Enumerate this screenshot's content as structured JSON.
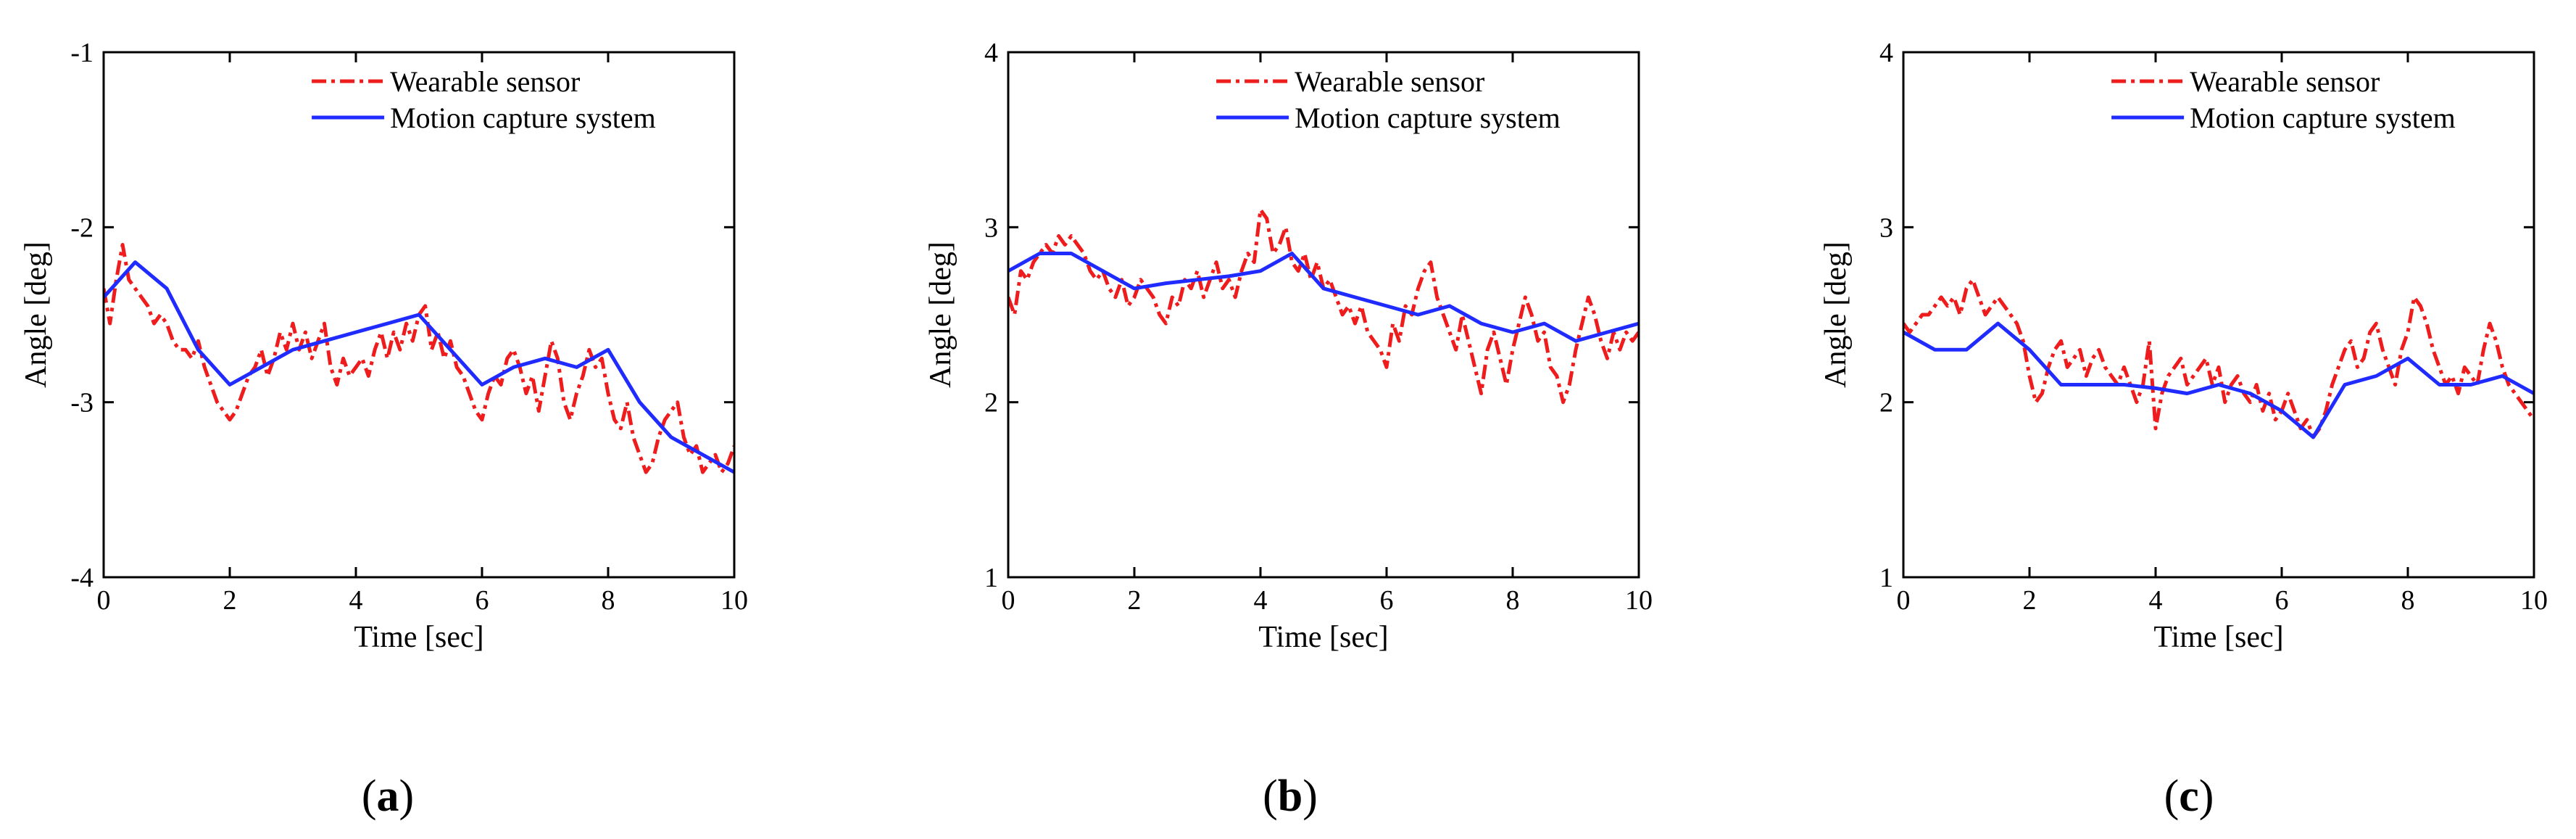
{
  "figure": {
    "panels": [
      "a",
      "b",
      "c"
    ]
  },
  "chart_data": [
    {
      "type": "line",
      "panel_label": "a",
      "xlabel": "Time [sec]",
      "ylabel": "Angle [deg]",
      "xlim": [
        0,
        10
      ],
      "ylim": [
        -4,
        -1
      ],
      "xticks": [
        0,
        2,
        4,
        6,
        8,
        10
      ],
      "yticks": [
        -4,
        -3,
        -2,
        -1
      ],
      "legend_position": "top-right",
      "series": [
        {
          "name": "Wearable sensor",
          "color": "#ee1c1c",
          "style": "dash-dot",
          "x": [
            0,
            0.1,
            0.2,
            0.3,
            0.4,
            0.5,
            0.6,
            0.7,
            0.8,
            0.9,
            1.0,
            1.1,
            1.2,
            1.3,
            1.4,
            1.5,
            1.6,
            1.7,
            1.8,
            1.9,
            2.0,
            2.1,
            2.2,
            2.3,
            2.4,
            2.5,
            2.6,
            2.7,
            2.8,
            2.9,
            3.0,
            3.1,
            3.2,
            3.3,
            3.4,
            3.5,
            3.6,
            3.7,
            3.8,
            3.9,
            4.0,
            4.1,
            4.2,
            4.3,
            4.4,
            4.5,
            4.6,
            4.7,
            4.8,
            4.9,
            5.0,
            5.1,
            5.2,
            5.3,
            5.4,
            5.5,
            5.6,
            5.7,
            5.8,
            5.9,
            6.0,
            6.1,
            6.2,
            6.3,
            6.4,
            6.5,
            6.6,
            6.7,
            6.8,
            6.9,
            7.0,
            7.1,
            7.2,
            7.3,
            7.4,
            7.5,
            7.6,
            7.7,
            7.8,
            7.9,
            8.0,
            8.1,
            8.2,
            8.3,
            8.4,
            8.5,
            8.6,
            8.7,
            8.8,
            8.9,
            9.0,
            9.1,
            9.2,
            9.3,
            9.4,
            9.5,
            9.6,
            9.7,
            9.8,
            9.9,
            10.0
          ],
          "y": [
            -2.35,
            -2.55,
            -2.3,
            -2.1,
            -2.3,
            -2.35,
            -2.4,
            -2.45,
            -2.55,
            -2.5,
            -2.55,
            -2.65,
            -2.7,
            -2.7,
            -2.75,
            -2.65,
            -2.8,
            -2.9,
            -3.0,
            -3.05,
            -3.1,
            -3.05,
            -2.95,
            -2.85,
            -2.8,
            -2.7,
            -2.85,
            -2.75,
            -2.6,
            -2.7,
            -2.55,
            -2.7,
            -2.6,
            -2.75,
            -2.65,
            -2.55,
            -2.8,
            -2.9,
            -2.75,
            -2.85,
            -2.8,
            -2.75,
            -2.85,
            -2.7,
            -2.6,
            -2.75,
            -2.6,
            -2.7,
            -2.55,
            -2.65,
            -2.5,
            -2.45,
            -2.7,
            -2.6,
            -2.75,
            -2.65,
            -2.8,
            -2.85,
            -2.95,
            -3.05,
            -3.1,
            -2.95,
            -2.85,
            -2.9,
            -2.75,
            -2.7,
            -2.8,
            -2.95,
            -2.85,
            -3.05,
            -2.85,
            -2.65,
            -2.75,
            -3.0,
            -3.1,
            -2.95,
            -2.85,
            -2.7,
            -2.8,
            -2.75,
            -2.95,
            -3.1,
            -3.15,
            -3.0,
            -3.2,
            -3.3,
            -3.4,
            -3.35,
            -3.2,
            -3.1,
            -3.05,
            -3.0,
            -3.2,
            -3.3,
            -3.25,
            -3.4,
            -3.35,
            -3.3,
            -3.4,
            -3.35,
            -3.25
          ]
        },
        {
          "name": "Motion capture system",
          "color": "#1f2bff",
          "style": "solid",
          "x": [
            0,
            0.5,
            1.0,
            1.5,
            2.0,
            2.5,
            3.0,
            3.5,
            4.0,
            4.5,
            5.0,
            5.5,
            6.0,
            6.5,
            7.0,
            7.5,
            8.0,
            8.5,
            9.0,
            9.5,
            10.0
          ],
          "y": [
            -2.4,
            -2.2,
            -2.35,
            -2.7,
            -2.9,
            -2.8,
            -2.7,
            -2.65,
            -2.6,
            -2.55,
            -2.5,
            -2.7,
            -2.9,
            -2.8,
            -2.75,
            -2.8,
            -2.7,
            -3.0,
            -3.2,
            -3.3,
            -3.4
          ]
        }
      ]
    },
    {
      "type": "line",
      "panel_label": "b",
      "xlabel": "Time [sec]",
      "ylabel": "Angle [deg]",
      "xlim": [
        0,
        10
      ],
      "ylim": [
        1,
        4
      ],
      "xticks": [
        0,
        2,
        4,
        6,
        8,
        10
      ],
      "yticks": [
        1,
        2,
        3,
        4
      ],
      "legend_position": "top-right",
      "series": [
        {
          "name": "Wearable sensor",
          "color": "#ee1c1c",
          "style": "dash-dot",
          "x": [
            0,
            0.1,
            0.2,
            0.3,
            0.4,
            0.5,
            0.6,
            0.7,
            0.8,
            0.9,
            1.0,
            1.1,
            1.2,
            1.3,
            1.4,
            1.5,
            1.6,
            1.7,
            1.8,
            1.9,
            2.0,
            2.1,
            2.2,
            2.3,
            2.4,
            2.5,
            2.6,
            2.7,
            2.8,
            2.9,
            3.0,
            3.1,
            3.2,
            3.3,
            3.4,
            3.5,
            3.6,
            3.7,
            3.8,
            3.9,
            4.0,
            4.1,
            4.2,
            4.3,
            4.4,
            4.5,
            4.6,
            4.7,
            4.8,
            4.9,
            5.0,
            5.1,
            5.2,
            5.3,
            5.4,
            5.5,
            5.6,
            5.7,
            5.8,
            5.9,
            6.0,
            6.1,
            6.2,
            6.3,
            6.4,
            6.5,
            6.6,
            6.7,
            6.8,
            6.9,
            7.0,
            7.1,
            7.2,
            7.3,
            7.4,
            7.5,
            7.6,
            7.7,
            7.8,
            7.9,
            8.0,
            8.1,
            8.2,
            8.3,
            8.4,
            8.5,
            8.6,
            8.7,
            8.8,
            8.9,
            9.0,
            9.1,
            9.2,
            9.3,
            9.4,
            9.5,
            9.6,
            9.7,
            9.8,
            9.9,
            10.0
          ],
          "y": [
            2.6,
            2.5,
            2.75,
            2.7,
            2.8,
            2.85,
            2.9,
            2.85,
            2.95,
            2.9,
            2.95,
            2.9,
            2.85,
            2.75,
            2.7,
            2.75,
            2.65,
            2.6,
            2.7,
            2.55,
            2.6,
            2.7,
            2.65,
            2.6,
            2.5,
            2.45,
            2.6,
            2.55,
            2.7,
            2.65,
            2.75,
            2.6,
            2.7,
            2.8,
            2.65,
            2.7,
            2.6,
            2.75,
            2.85,
            2.8,
            3.1,
            3.05,
            2.85,
            2.9,
            3.0,
            2.8,
            2.75,
            2.85,
            2.7,
            2.8,
            2.65,
            2.7,
            2.6,
            2.5,
            2.55,
            2.45,
            2.55,
            2.4,
            2.35,
            2.3,
            2.2,
            2.45,
            2.35,
            2.55,
            2.5,
            2.65,
            2.75,
            2.8,
            2.6,
            2.5,
            2.4,
            2.3,
            2.5,
            2.35,
            2.2,
            2.05,
            2.3,
            2.4,
            2.25,
            2.1,
            2.3,
            2.45,
            2.6,
            2.5,
            2.35,
            2.4,
            2.2,
            2.15,
            2.0,
            2.1,
            2.3,
            2.45,
            2.6,
            2.5,
            2.35,
            2.25,
            2.4,
            2.3,
            2.4,
            2.35,
            2.4
          ]
        },
        {
          "name": "Motion capture system",
          "color": "#1f2bff",
          "style": "solid",
          "x": [
            0,
            0.5,
            1.0,
            1.5,
            2.0,
            2.5,
            3.0,
            3.5,
            4.0,
            4.5,
            5.0,
            5.5,
            6.0,
            6.5,
            7.0,
            7.5,
            8.0,
            8.5,
            9.0,
            9.5,
            10.0
          ],
          "y": [
            2.75,
            2.85,
            2.85,
            2.75,
            2.65,
            2.68,
            2.7,
            2.72,
            2.75,
            2.85,
            2.65,
            2.6,
            2.55,
            2.5,
            2.55,
            2.45,
            2.4,
            2.45,
            2.35,
            2.4,
            2.45
          ]
        }
      ]
    },
    {
      "type": "line",
      "panel_label": "c",
      "xlabel": "Time [sec]",
      "ylabel": "Angle [deg]",
      "xlim": [
        0,
        10
      ],
      "ylim": [
        1,
        4
      ],
      "xticks": [
        0,
        2,
        4,
        6,
        8,
        10
      ],
      "yticks": [
        1,
        2,
        3,
        4
      ],
      "legend_position": "top-right",
      "series": [
        {
          "name": "Wearable sensor",
          "color": "#ee1c1c",
          "style": "dash-dot",
          "x": [
            0,
            0.1,
            0.2,
            0.3,
            0.4,
            0.5,
            0.6,
            0.7,
            0.8,
            0.9,
            1.0,
            1.1,
            1.2,
            1.3,
            1.4,
            1.5,
            1.6,
            1.7,
            1.8,
            1.9,
            2.0,
            2.1,
            2.2,
            2.3,
            2.4,
            2.5,
            2.6,
            2.7,
            2.8,
            2.9,
            3.0,
            3.1,
            3.2,
            3.3,
            3.4,
            3.5,
            3.6,
            3.7,
            3.8,
            3.9,
            4.0,
            4.1,
            4.2,
            4.3,
            4.4,
            4.5,
            4.6,
            4.7,
            4.8,
            4.9,
            5.0,
            5.1,
            5.2,
            5.3,
            5.4,
            5.5,
            5.6,
            5.7,
            5.8,
            5.9,
            6.0,
            6.1,
            6.2,
            6.3,
            6.4,
            6.5,
            6.6,
            6.7,
            6.8,
            6.9,
            7.0,
            7.1,
            7.2,
            7.3,
            7.4,
            7.5,
            7.6,
            7.7,
            7.8,
            7.9,
            8.0,
            8.1,
            8.2,
            8.3,
            8.4,
            8.5,
            8.6,
            8.7,
            8.8,
            8.9,
            9.0,
            9.1,
            9.2,
            9.3,
            9.4,
            9.5,
            9.6,
            9.7,
            9.8,
            9.9,
            10.0
          ],
          "y": [
            2.45,
            2.4,
            2.45,
            2.5,
            2.5,
            2.55,
            2.6,
            2.55,
            2.6,
            2.5,
            2.65,
            2.7,
            2.6,
            2.5,
            2.55,
            2.6,
            2.55,
            2.5,
            2.45,
            2.35,
            2.15,
            2.0,
            2.05,
            2.2,
            2.3,
            2.35,
            2.2,
            2.25,
            2.3,
            2.15,
            2.25,
            2.3,
            2.2,
            2.15,
            2.1,
            2.2,
            2.1,
            2.0,
            2.1,
            2.35,
            1.85,
            2.05,
            2.15,
            2.2,
            2.25,
            2.1,
            2.15,
            2.2,
            2.25,
            2.1,
            2.2,
            2.0,
            2.1,
            2.15,
            2.05,
            2.0,
            2.1,
            1.95,
            2.05,
            1.9,
            1.95,
            2.05,
            1.95,
            1.85,
            1.9,
            1.8,
            1.85,
            1.95,
            2.1,
            2.2,
            2.3,
            2.35,
            2.2,
            2.25,
            2.4,
            2.45,
            2.3,
            2.2,
            2.1,
            2.3,
            2.4,
            2.6,
            2.55,
            2.45,
            2.3,
            2.2,
            2.1,
            2.15,
            2.05,
            2.2,
            2.15,
            2.1,
            2.3,
            2.45,
            2.35,
            2.2,
            2.1,
            2.05,
            2.0,
            1.95,
            1.9
          ]
        },
        {
          "name": "Motion capture system",
          "color": "#1f2bff",
          "style": "solid",
          "x": [
            0,
            0.5,
            1.0,
            1.5,
            2.0,
            2.5,
            3.0,
            3.5,
            4.0,
            4.5,
            5.0,
            5.5,
            6.0,
            6.5,
            7.0,
            7.5,
            8.0,
            8.5,
            9.0,
            9.5,
            10.0
          ],
          "y": [
            2.4,
            2.3,
            2.3,
            2.45,
            2.3,
            2.1,
            2.1,
            2.1,
            2.08,
            2.05,
            2.1,
            2.05,
            1.95,
            1.8,
            2.1,
            2.15,
            2.25,
            2.1,
            2.1,
            2.15,
            2.05
          ]
        }
      ]
    }
  ]
}
